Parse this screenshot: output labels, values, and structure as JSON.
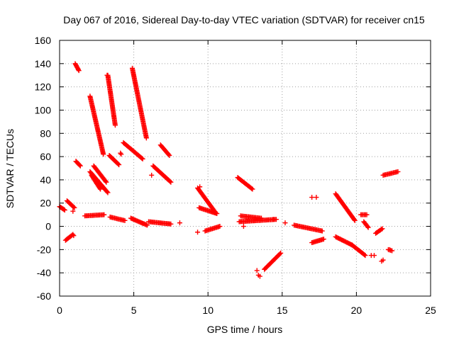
{
  "chart_data": {
    "type": "scatter",
    "title": "Day 067 of 2016, Sidereal Day-to-day VTEC variation (SDTVAR) for receiver cn15",
    "xlabel": "GPS time / hours",
    "ylabel": "SDTVAR / TECUs",
    "xlim": [
      0,
      25
    ],
    "ylim": [
      -60,
      160
    ],
    "xticks": [
      0,
      5,
      10,
      15,
      20,
      25
    ],
    "yticks": [
      -60,
      -40,
      -20,
      0,
      20,
      40,
      60,
      80,
      100,
      120,
      140,
      160
    ],
    "grid": true,
    "marker": "+",
    "color": "#ff0000",
    "tracks": [
      {
        "x0": 0.0,
        "y0": 17,
        "x1": 0.35,
        "y1": 14
      },
      {
        "x0": 0.4,
        "y0": -12,
        "x1": 0.9,
        "y1": -7
      },
      {
        "x0": 0.5,
        "y0": 22,
        "x1": 1.0,
        "y1": 16
      },
      {
        "x0": 1.05,
        "y0": 140,
        "x1": 1.3,
        "y1": 134
      },
      {
        "x0": 1.1,
        "y0": 56,
        "x1": 1.4,
        "y1": 52
      },
      {
        "x0": 1.7,
        "y0": 9,
        "x1": 3.0,
        "y1": 10
      },
      {
        "x0": 2.05,
        "y0": 112,
        "x1": 2.95,
        "y1": 62
      },
      {
        "x0": 2.05,
        "y0": 47,
        "x1": 3.25,
        "y1": 29
      },
      {
        "x0": 2.15,
        "y0": 44,
        "x1": 2.75,
        "y1": 32
      },
      {
        "x0": 2.3,
        "y0": 52,
        "x1": 3.15,
        "y1": 38
      },
      {
        "x0": 3.25,
        "y0": 130,
        "x1": 3.75,
        "y1": 87
      },
      {
        "x0": 3.35,
        "y0": 61,
        "x1": 4.0,
        "y1": 53
      },
      {
        "x0": 3.4,
        "y0": 8,
        "x1": 4.4,
        "y1": 5
      },
      {
        "x0": 4.3,
        "y0": 72,
        "x1": 5.6,
        "y1": 58
      },
      {
        "x0": 4.9,
        "y0": 136,
        "x1": 5.85,
        "y1": 76
      },
      {
        "x0": 4.8,
        "y0": 7,
        "x1": 5.9,
        "y1": 1
      },
      {
        "x0": 6.0,
        "y0": 4,
        "x1": 7.5,
        "y1": 2
      },
      {
        "x0": 6.3,
        "y0": 52,
        "x1": 7.5,
        "y1": 38
      },
      {
        "x0": 6.8,
        "y0": 70,
        "x1": 7.4,
        "y1": 61
      },
      {
        "x0": 9.3,
        "y0": 33,
        "x1": 10.5,
        "y1": 12
      },
      {
        "x0": 9.4,
        "y0": 16,
        "x1": 10.6,
        "y1": 11
      },
      {
        "x0": 9.8,
        "y0": -4,
        "x1": 10.8,
        "y1": 0
      },
      {
        "x0": 12.0,
        "y0": 42,
        "x1": 13.0,
        "y1": 32
      },
      {
        "x0": 12.2,
        "y0": 9,
        "x1": 13.6,
        "y1": 7
      },
      {
        "x0": 12.1,
        "y0": 4,
        "x1": 14.6,
        "y1": 6
      },
      {
        "x0": 13.8,
        "y0": -37,
        "x1": 14.9,
        "y1": -23
      },
      {
        "x0": 15.8,
        "y0": 1,
        "x1": 17.7,
        "y1": -4
      },
      {
        "x0": 17.0,
        "y0": -14,
        "x1": 17.8,
        "y1": -11
      },
      {
        "x0": 18.6,
        "y0": 28,
        "x1": 19.9,
        "y1": 5
      },
      {
        "x0": 18.6,
        "y0": -9,
        "x1": 19.7,
        "y1": -16
      },
      {
        "x0": 19.7,
        "y0": -16,
        "x1": 20.6,
        "y1": -25
      },
      {
        "x0": 20.3,
        "y0": 10,
        "x1": 20.7,
        "y1": 10
      },
      {
        "x0": 20.5,
        "y0": 4,
        "x1": 20.8,
        "y1": -1
      },
      {
        "x0": 21.3,
        "y0": -6,
        "x1": 21.75,
        "y1": -2
      },
      {
        "x0": 21.8,
        "y0": 44,
        "x1": 22.8,
        "y1": 47
      },
      {
        "x0": 22.15,
        "y0": -20,
        "x1": 22.4,
        "y1": -21
      }
    ],
    "points": [
      {
        "x": 0.9,
        "y": 13
      },
      {
        "x": 0.95,
        "y": -8
      },
      {
        "x": 2.5,
        "y": 37
      },
      {
        "x": 3.2,
        "y": 130
      },
      {
        "x": 4.1,
        "y": 63
      },
      {
        "x": 4.15,
        "y": 62
      },
      {
        "x": 6.2,
        "y": 44
      },
      {
        "x": 8.1,
        "y": 3
      },
      {
        "x": 9.3,
        "y": -5
      },
      {
        "x": 9.45,
        "y": 34
      },
      {
        "x": 12.4,
        "y": 0
      },
      {
        "x": 12.7,
        "y": 6
      },
      {
        "x": 13.3,
        "y": -38
      },
      {
        "x": 13.4,
        "y": -42
      },
      {
        "x": 13.5,
        "y": -43
      },
      {
        "x": 14.4,
        "y": 6
      },
      {
        "x": 15.2,
        "y": 3
      },
      {
        "x": 17.0,
        "y": 25
      },
      {
        "x": 17.3,
        "y": 25
      },
      {
        "x": 21.0,
        "y": -25
      },
      {
        "x": 21.2,
        "y": -25
      },
      {
        "x": 21.7,
        "y": -30
      },
      {
        "x": 21.8,
        "y": -29
      },
      {
        "x": 22.25,
        "y": -20
      }
    ]
  }
}
